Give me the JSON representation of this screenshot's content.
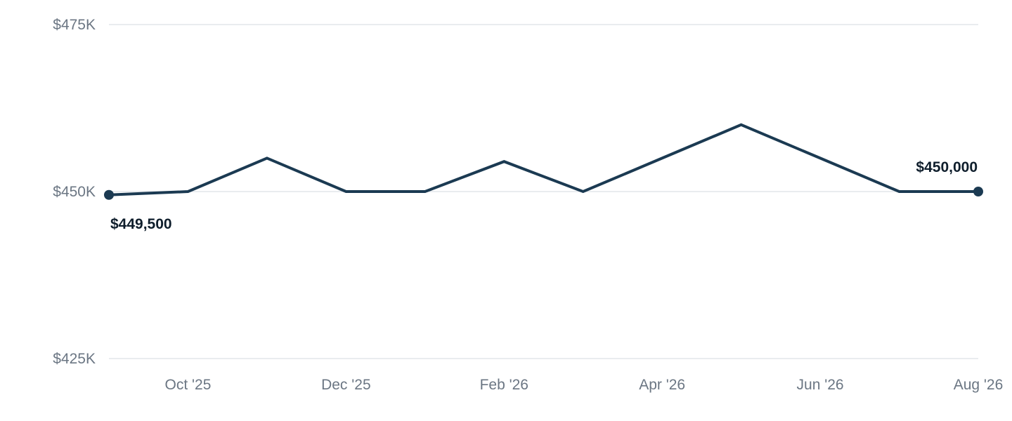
{
  "chart_data": {
    "type": "line",
    "x": [
      "Sep '25",
      "Oct '25",
      "Nov '25",
      "Dec '25",
      "Jan '26",
      "Feb '26",
      "Mar '26",
      "Apr '26",
      "May '26",
      "Jun '26",
      "Jul '26",
      "Aug '26"
    ],
    "values": [
      449500,
      450000,
      455000,
      450000,
      450000,
      454500,
      450000,
      455000,
      460000,
      455000,
      450000,
      450000
    ],
    "xtick_labels": [
      "Oct '25",
      "Dec '25",
      "Feb '26",
      "Apr '26",
      "Jun '26",
      "Aug '26"
    ],
    "yticks": [
      425000,
      450000,
      475000
    ],
    "ytick_labels": [
      "$425K",
      "$450K",
      "$475K"
    ],
    "ylim": [
      425000,
      475000
    ],
    "grid": true,
    "line_color": "#1b3a52",
    "start_label": "$449,500",
    "end_label": "$450,000",
    "title": "",
    "xlabel": "",
    "ylabel": ""
  }
}
